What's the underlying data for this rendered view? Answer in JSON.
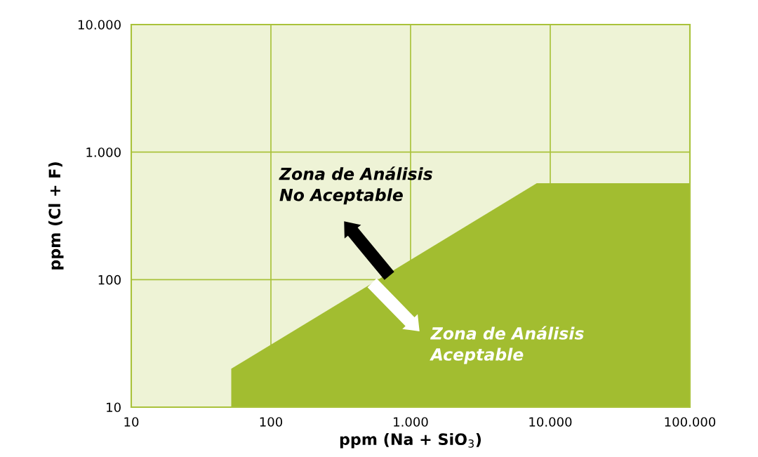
{
  "chart_data": {
    "type": "area",
    "xlabel": "ppm (Na + SiO$_{3}$)",
    "ylabel": "ppm (Cl + F)",
    "x": [
      52,
      52,
      8000,
      100000
    ],
    "series": [
      {
        "color": "#a2bd30",
        "values": [
          10,
          20,
          570,
          570
        ]
      }
    ],
    "log": "xy",
    "xlim": [
      10,
      100000
    ],
    "ylim": [
      10,
      10000
    ],
    "xticks": [
      10,
      100,
      {
        "value": 1000,
        "label": "1.000"
      },
      {
        "value": 10000,
        "label": "10.000"
      },
      {
        "value": 100000,
        "label": "100.000"
      }
    ],
    "yticks": [
      10,
      100,
      {
        "value": 1000,
        "label": "1.000"
      },
      {
        "value": 10000,
        "label": "10.000"
      }
    ],
    "grid": true,
    "legend": false,
    "annotations": [
      "Zona de Análisis\nNo Aceptable",
      "Zona de Análisis\nAceptable"
    ]
  }
}
